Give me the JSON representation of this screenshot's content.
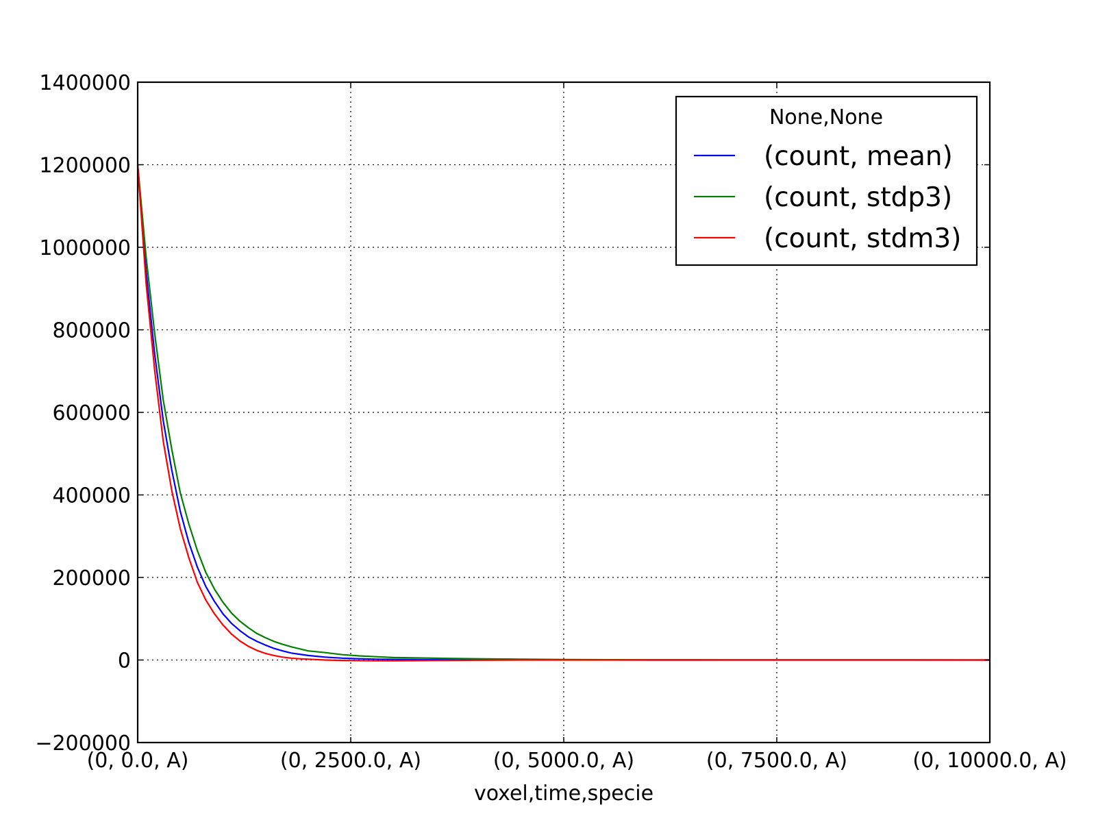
{
  "chart_data": {
    "type": "line",
    "title": "",
    "xlabel": "voxel,time,specie",
    "ylabel": "",
    "xlim": [
      0,
      10000
    ],
    "ylim": [
      -200000,
      1400000
    ],
    "grid": true,
    "legend_placement": "top-right",
    "legend_title": "None,None",
    "x_ticks": [
      0,
      2500,
      5000,
      7500,
      10000
    ],
    "x_tick_labels": [
      "(0, 0.0, A)",
      "(0, 2500.0, A)",
      "(0, 5000.0, A)",
      "(0, 7500.0, A)",
      "(0, 10000.0, A)"
    ],
    "y_ticks": [
      -200000,
      0,
      200000,
      400000,
      600000,
      800000,
      1000000,
      1200000,
      1400000
    ],
    "y_tick_labels": [
      "−200000",
      "0",
      "200000",
      "400000",
      "600000",
      "800000",
      "1000000",
      "1200000",
      "1400000"
    ],
    "x": [
      0,
      100,
      200,
      300,
      400,
      500,
      600,
      700,
      800,
      900,
      1000,
      1100,
      1200,
      1300,
      1400,
      1500,
      1600,
      1700,
      1800,
      1900,
      2000,
      2200,
      2400,
      2600,
      2800,
      3000,
      3300,
      3600,
      4000,
      4500,
      5000,
      6000,
      7000,
      8000,
      9000,
      10000
    ],
    "series": [
      {
        "name": "(count, mean)",
        "color": "#0000ff",
        "values": [
          1200000,
          940000,
          740000,
          580000,
          460000,
          360000,
          285000,
          225000,
          178000,
          142000,
          112000,
          89000,
          71000,
          56000,
          45000,
          36000,
          28000,
          22000,
          17000,
          14000,
          11000,
          7000,
          4500,
          3000,
          2000,
          1500,
          900,
          600,
          400,
          200,
          100,
          50,
          0,
          0,
          0,
          0
        ]
      },
      {
        "name": "(count, stdp3)",
        "color": "#008000",
        "values": [
          1200000,
          975000,
          790000,
          630000,
          510000,
          405000,
          330000,
          265000,
          212000,
          172000,
          140000,
          114000,
          94000,
          78000,
          64000,
          54000,
          45000,
          38000,
          32000,
          27000,
          22000,
          18000,
          13000,
          10000,
          8000,
          6000,
          5000,
          4000,
          3000,
          2000,
          1000,
          500,
          300,
          200,
          100,
          0
        ]
      },
      {
        "name": "(count, stdm3)",
        "color": "#ff0000",
        "values": [
          1200000,
          910000,
          700000,
          530000,
          410000,
          318000,
          248000,
          188000,
          145000,
          112000,
          85000,
          63000,
          46000,
          33000,
          23000,
          16000,
          11000,
          7000,
          4500,
          3000,
          2000,
          0,
          -1000,
          -1500,
          -2000,
          -2000,
          -1500,
          -1000,
          -500,
          0,
          0,
          0,
          0,
          0,
          0,
          0
        ]
      }
    ]
  }
}
